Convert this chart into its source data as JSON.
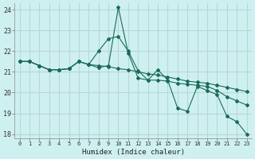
{
  "xlabel": "Humidex (Indice chaleur)",
  "bg_color": "#cff0f0",
  "grid_color": "#b8d8d8",
  "line_color": "#1a6b5a",
  "xlim": [
    -0.5,
    23.5
  ],
  "ylim": [
    17.8,
    24.3
  ],
  "yticks": [
    18,
    19,
    20,
    21,
    22,
    23,
    24
  ],
  "xticks": [
    0,
    1,
    2,
    3,
    4,
    5,
    6,
    7,
    8,
    9,
    10,
    11,
    12,
    13,
    14,
    15,
    16,
    17,
    18,
    19,
    20,
    21,
    22,
    23
  ],
  "line1_x": [
    0,
    1,
    2,
    3,
    4,
    5,
    6,
    7,
    8,
    9,
    10,
    11,
    12,
    13,
    14,
    15,
    16,
    17,
    18,
    19,
    20,
    21,
    22,
    23
  ],
  "line1_y": [
    21.5,
    21.5,
    21.3,
    21.1,
    21.1,
    21.15,
    21.5,
    21.35,
    21.2,
    21.3,
    24.1,
    21.9,
    20.7,
    20.6,
    21.1,
    20.6,
    19.25,
    19.1,
    20.3,
    20.1,
    19.9,
    18.85,
    18.6,
    18.0
  ],
  "line2_x": [
    0,
    1,
    2,
    3,
    4,
    5,
    6,
    7,
    8,
    9,
    10,
    11,
    12,
    13,
    14,
    15,
    16,
    17,
    18,
    19,
    20,
    21,
    22,
    23
  ],
  "line2_y": [
    21.5,
    21.5,
    21.3,
    21.1,
    21.1,
    21.15,
    21.5,
    21.35,
    22.0,
    22.6,
    22.7,
    22.0,
    21.05,
    20.6,
    20.6,
    20.55,
    20.45,
    20.4,
    20.35,
    20.3,
    20.1,
    19.8,
    19.6,
    19.4
  ],
  "line3_x": [
    0,
    1,
    2,
    3,
    4,
    5,
    6,
    7,
    8,
    9,
    10,
    11,
    12,
    13,
    14,
    15,
    16,
    17,
    18,
    19,
    20,
    21,
    22,
    23
  ],
  "line3_y": [
    21.5,
    21.5,
    21.3,
    21.1,
    21.1,
    21.15,
    21.5,
    21.35,
    21.3,
    21.25,
    21.15,
    21.1,
    21.0,
    20.9,
    20.85,
    20.75,
    20.65,
    20.55,
    20.5,
    20.45,
    20.35,
    20.25,
    20.15,
    20.05
  ]
}
